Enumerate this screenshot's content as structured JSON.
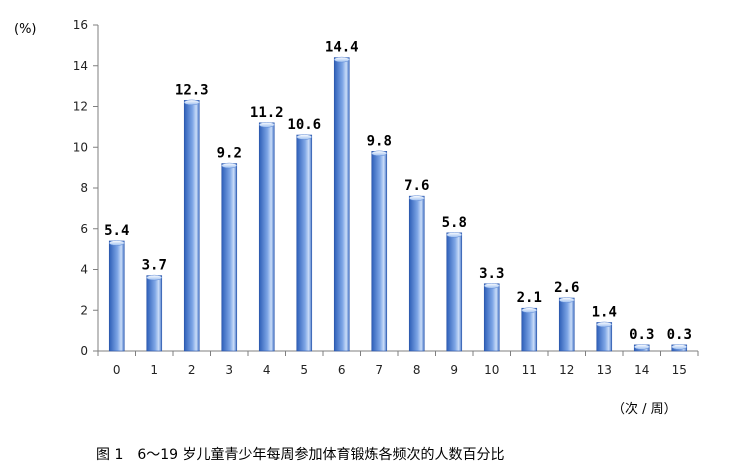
{
  "chart_data": {
    "type": "bar",
    "title": "",
    "ylabel": "(%)",
    "xlabel": "（次 / 周）",
    "categories": [
      "0",
      "1",
      "2",
      "3",
      "4",
      "5",
      "6",
      "7",
      "8",
      "9",
      "10",
      "11",
      "12",
      "13",
      "14",
      "15"
    ],
    "values": [
      5.4,
      3.7,
      12.3,
      9.2,
      11.2,
      10.6,
      14.4,
      9.8,
      7.6,
      5.8,
      3.3,
      2.1,
      2.6,
      1.4,
      0.3,
      0.3
    ],
    "data_labels": [
      "5.4",
      "3.7",
      "12.3",
      "9.2",
      "11.2",
      "10.6",
      "14.4",
      "9.8",
      "7.6",
      "5.8",
      "3.3",
      "2.1",
      "2.6",
      "1.4",
      "0.3",
      "0.3"
    ],
    "ylim": [
      0,
      16
    ],
    "yticks": [
      0,
      2,
      4,
      6,
      8,
      10,
      12,
      14,
      16
    ],
    "grid": false,
    "legend": "none",
    "colors": {
      "bar_dark": "#2e5fb8",
      "bar_mid": "#6f9ae0",
      "bar_light": "#c9dcf8",
      "cap": "#eef5ff",
      "axis": "#7f7f7f"
    }
  },
  "caption": "图 1　6～19 岁儿童青少年每周参加体育锻炼各频次的人数百分比"
}
